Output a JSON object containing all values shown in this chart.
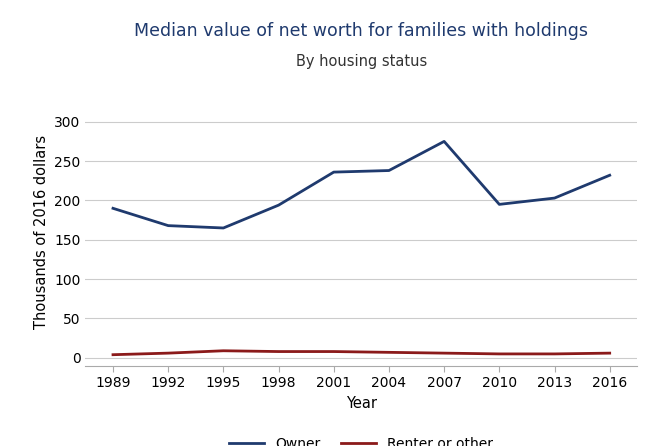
{
  "title_line1": "Median value of net worth for families with holdings",
  "title_line2": "By housing status",
  "xlabel": "Year",
  "ylabel": "Thousands of 2016 dollars",
  "years": [
    1989,
    1992,
    1995,
    1998,
    2001,
    2004,
    2007,
    2010,
    2013,
    2016
  ],
  "owner_values": [
    190,
    168,
    165,
    194,
    236,
    238,
    275,
    195,
    203,
    232
  ],
  "renter_values": [
    4,
    6,
    9,
    8,
    8,
    7,
    6,
    5,
    5,
    6
  ],
  "owner_color": "#1f3a6e",
  "renter_color": "#8b1a1a",
  "ylim": [
    -10,
    330
  ],
  "yticks": [
    0,
    50,
    100,
    150,
    200,
    250,
    300
  ],
  "xticks": [
    1989,
    1992,
    1995,
    1998,
    2001,
    2004,
    2007,
    2010,
    2013,
    2016
  ],
  "title_color": "#1f3a6e",
  "subtitle_color": "#333333",
  "title_fontsize": 12.5,
  "subtitle_fontsize": 10.5,
  "axis_label_fontsize": 10.5,
  "tick_fontsize": 10,
  "legend_fontsize": 10,
  "line_width": 2.0,
  "background_color": "#ffffff",
  "grid_color": "#cccccc",
  "owner_label": "Owner",
  "renter_label": "Renter or other"
}
